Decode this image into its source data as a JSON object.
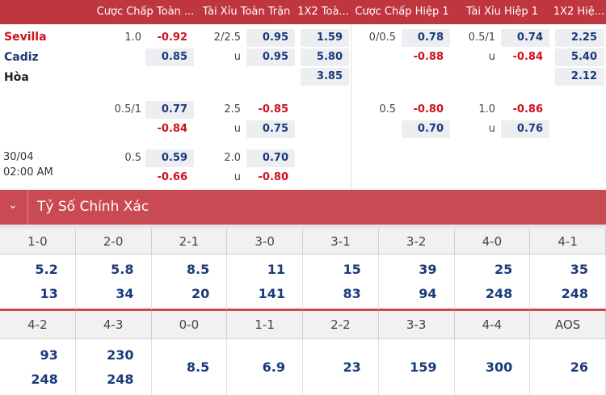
{
  "header": {
    "columns": [
      "Cược Chấp Toàn ...",
      "Tài Xỉu Toàn Trận",
      "1X2 Toà...",
      "Cược Chấp Hiệp 1",
      "Tài Xỉu Hiệp 1",
      "1X2 Hiệ..."
    ]
  },
  "match": {
    "teams": [
      "Sevilla",
      "Cadiz",
      "Hòa"
    ],
    "time": [
      "30/04",
      "02:00 AM"
    ],
    "groups": [
      {
        "ft_handicap": {
          "line": "1.0",
          "odds": [
            "-0.92",
            "0.85"
          ]
        },
        "ft_total": {
          "line": "2/2.5",
          "under": "u",
          "odds": [
            "0.95",
            "0.95"
          ]
        },
        "ft_1x2": {
          "odds": [
            "1.59",
            "5.80",
            "3.85"
          ]
        },
        "h1_handicap": {
          "line": "0/0.5",
          "odds": [
            "0.78",
            "-0.88"
          ]
        },
        "h1_total": {
          "line": "0.5/1",
          "under": "u",
          "odds": [
            "0.74",
            "-0.84"
          ]
        },
        "h1_1x2": {
          "odds": [
            "2.25",
            "5.40",
            "2.12"
          ]
        }
      },
      {
        "ft_handicap": {
          "line": "0.5/1",
          "odds": [
            "0.77",
            "-0.84"
          ]
        },
        "ft_total": {
          "line": "2.5",
          "under": "u",
          "odds": [
            "-0.85",
            "0.75"
          ]
        },
        "h1_handicap": {
          "line": "0.5",
          "odds": [
            "-0.80",
            "0.70"
          ]
        },
        "h1_total": {
          "line": "1.0",
          "under": "u",
          "odds": [
            "-0.86",
            "0.76"
          ]
        }
      },
      {
        "ft_handicap": {
          "line": "0.5",
          "odds": [
            "0.59",
            "-0.66"
          ]
        },
        "ft_total": {
          "line": "2.0",
          "under": "u",
          "odds": [
            "0.70",
            "-0.80"
          ]
        }
      }
    ]
  },
  "exact_score": {
    "title": "Tỷ Số Chính Xác",
    "rows": [
      [
        {
          "score": "1-0",
          "odds": [
            "5.2",
            "13"
          ]
        },
        {
          "score": "2-0",
          "odds": [
            "5.8",
            "34"
          ]
        },
        {
          "score": "2-1",
          "odds": [
            "8.5",
            "20"
          ]
        },
        {
          "score": "3-0",
          "odds": [
            "11",
            "141"
          ]
        },
        {
          "score": "3-1",
          "odds": [
            "15",
            "83"
          ]
        },
        {
          "score": "3-2",
          "odds": [
            "39",
            "94"
          ]
        },
        {
          "score": "4-0",
          "odds": [
            "25",
            "248"
          ]
        },
        {
          "score": "4-1",
          "odds": [
            "35",
            "248"
          ]
        }
      ],
      [
        {
          "score": "4-2",
          "odds": [
            "93",
            "248"
          ]
        },
        {
          "score": "4-3",
          "odds": [
            "230",
            "248"
          ]
        },
        {
          "score": "0-0",
          "odds": [
            "8.5"
          ]
        },
        {
          "score": "1-1",
          "odds": [
            "6.9"
          ]
        },
        {
          "score": "2-2",
          "odds": [
            "23"
          ]
        },
        {
          "score": "3-3",
          "odds": [
            "159"
          ]
        },
        {
          "score": "4-4",
          "odds": [
            "300"
          ]
        },
        {
          "score": "AOS",
          "odds": [
            "26"
          ]
        }
      ]
    ]
  }
}
